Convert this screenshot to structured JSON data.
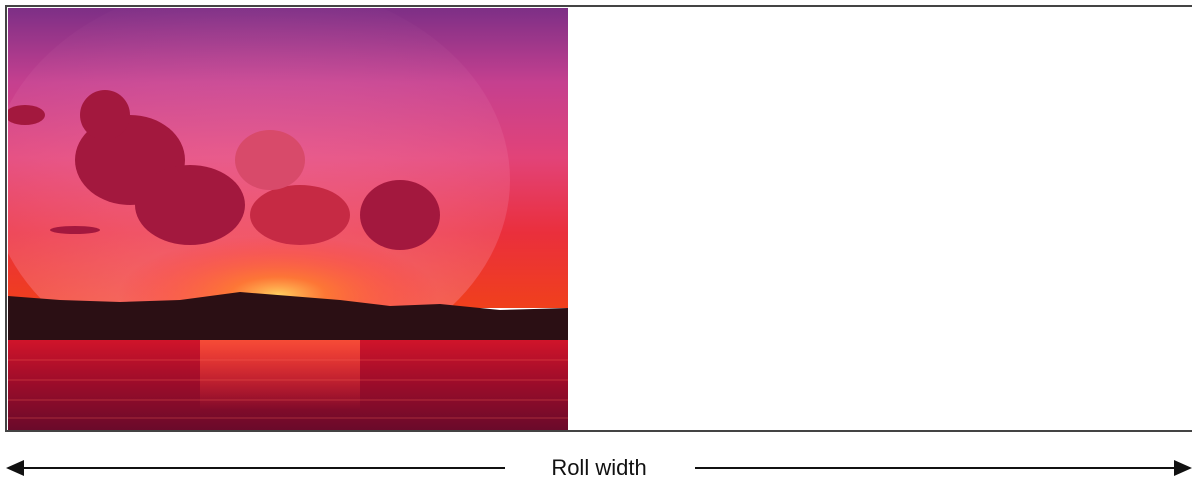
{
  "diagram": {
    "dimension_label": "Roll width"
  }
}
